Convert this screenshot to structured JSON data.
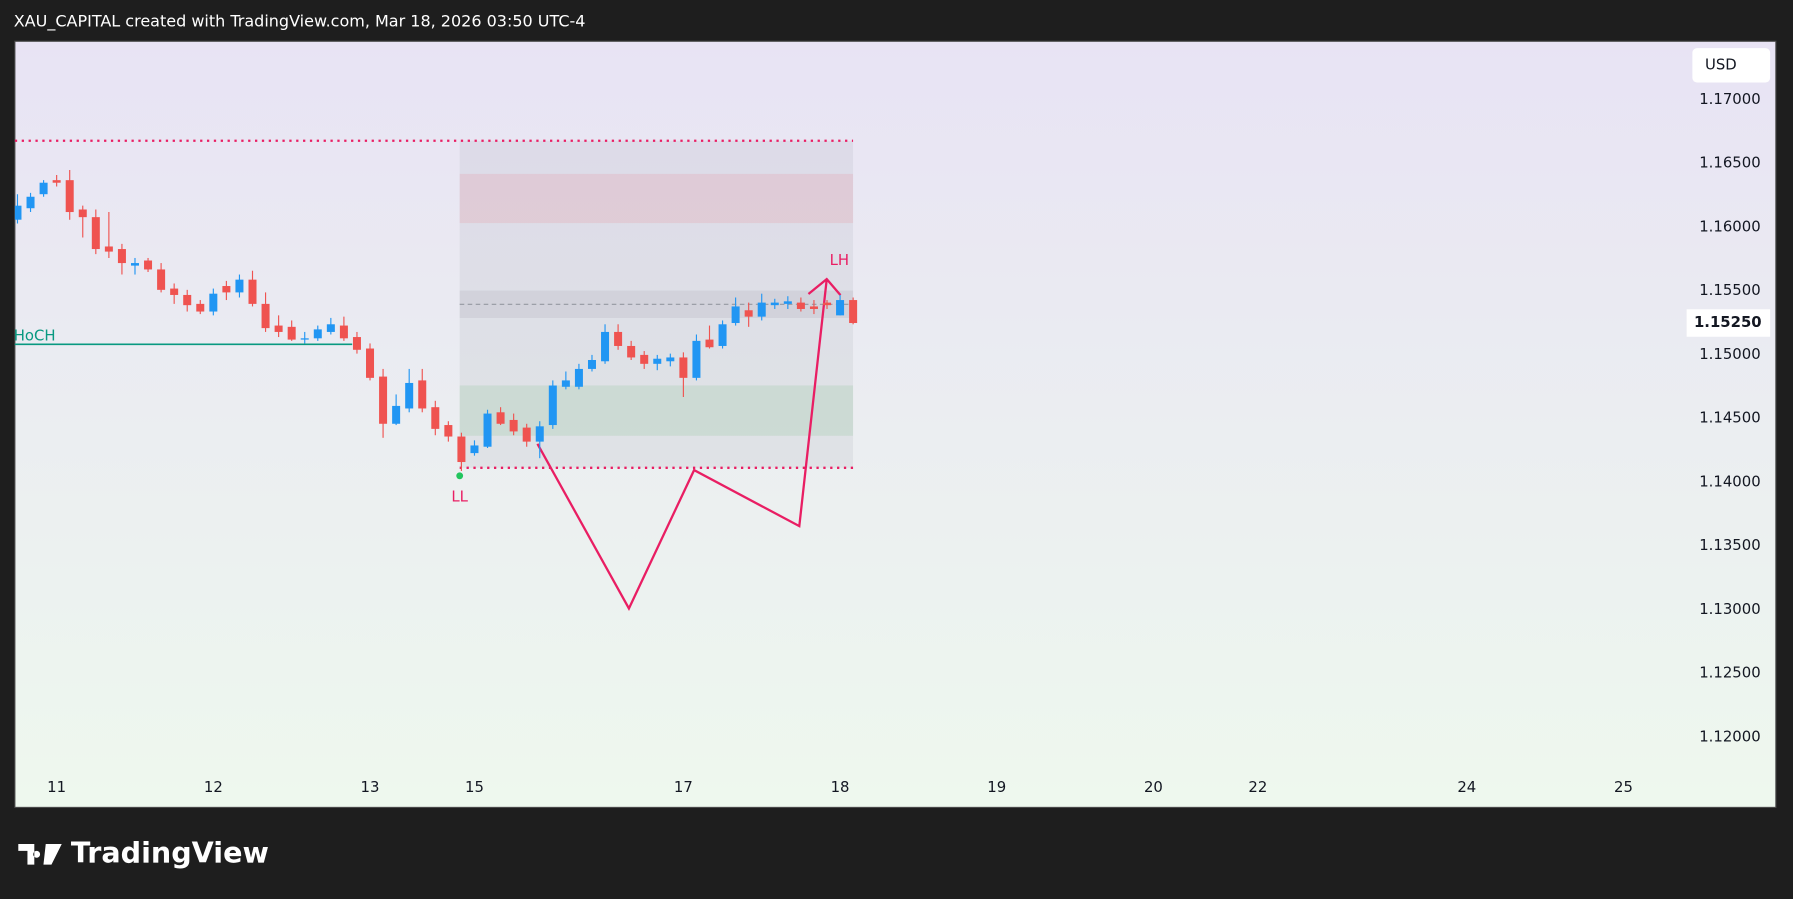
{
  "chart_data": {
    "type": "candlestick",
    "title": "XAU_CAPITAL created with TradingView.com, Mar 18, 2026 03:50 UTC-4",
    "currency": "USD",
    "up_color": "#2196f3",
    "down_color": "#ef5350",
    "grid": false,
    "open": [
      1.1606,
      1.1615,
      1.1626,
      1.1637,
      1.1637,
      1.1614,
      1.1608,
      1.1585,
      1.1583,
      1.157,
      1.1574,
      1.1567,
      1.1552,
      1.1547,
      1.154,
      1.1534,
      1.1554,
      1.1549,
      1.1559,
      1.154,
      1.1523,
      1.1522,
      1.1512,
      1.1513,
      1.1518,
      1.1523,
      1.1514,
      1.1505,
      1.1483,
      1.1446,
      1.1458,
      1.148,
      1.1459,
      1.1445,
      1.1436,
      1.1423,
      1.1428,
      1.1455,
      1.1449,
      1.1443,
      1.1432,
      1.1445,
      1.1475,
      1.1475,
      1.1489,
      1.1495,
      1.1518,
      1.1507,
      1.15,
      1.1493,
      1.1495,
      1.1498,
      1.1482,
      1.1512,
      1.1507,
      1.1525,
      1.1535,
      1.153,
      1.1539,
      1.154,
      1.1541,
      1.1538,
      1.1541,
      1.1531,
      1.1543
    ],
    "high": [
      1.1626,
      1.1627,
      1.1637,
      1.1641,
      1.1645,
      1.1617,
      1.1614,
      1.1612,
      1.1587,
      1.1576,
      1.1576,
      1.1572,
      1.1556,
      1.1551,
      1.1543,
      1.1552,
      1.1558,
      1.1563,
      1.1566,
      1.1549,
      1.1531,
      1.1527,
      1.1518,
      1.1523,
      1.1529,
      1.153,
      1.1518,
      1.1509,
      1.1489,
      1.1469,
      1.1489,
      1.1489,
      1.1464,
      1.1448,
      1.1439,
      1.1433,
      1.1457,
      1.1459,
      1.1454,
      1.1446,
      1.1448,
      1.148,
      1.1487,
      1.1493,
      1.15,
      1.1524,
      1.1524,
      1.1511,
      1.1503,
      1.15,
      1.1501,
      1.1502,
      1.1516,
      1.1523,
      1.1527,
      1.1545,
      1.1541,
      1.1548,
      1.1544,
      1.1546,
      1.1545,
      1.1543,
      1.1543,
      1.1547,
      1.1545
    ],
    "low": [
      1.1603,
      1.1612,
      1.1624,
      1.1632,
      1.1606,
      1.1592,
      1.1579,
      1.1576,
      1.1563,
      1.1563,
      1.1565,
      1.1549,
      1.154,
      1.1534,
      1.1532,
      1.1531,
      1.1543,
      1.1545,
      1.1538,
      1.1518,
      1.1514,
      1.1511,
      1.1509,
      1.1511,
      1.1516,
      1.1511,
      1.1501,
      1.148,
      1.1435,
      1.1445,
      1.1455,
      1.1455,
      1.1437,
      1.1432,
      1.1409,
      1.1421,
      1.1427,
      1.1445,
      1.1437,
      1.1428,
      1.1419,
      1.1442,
      1.1473,
      1.1473,
      1.1487,
      1.1493,
      1.1504,
      1.1496,
      1.1489,
      1.1488,
      1.1491,
      1.1467,
      1.148,
      1.1505,
      1.1505,
      1.1523,
      1.1522,
      1.1527,
      1.1536,
      1.1536,
      1.1534,
      1.1532,
      1.1536,
      1.1531,
      1.1524
    ],
    "close": [
      1.1617,
      1.1624,
      1.1635,
      1.1635,
      1.1612,
      1.1608,
      1.1583,
      1.1581,
      1.1572,
      1.1572,
      1.1567,
      1.1551,
      1.1547,
      1.1539,
      1.1534,
      1.1548,
      1.1549,
      1.1559,
      1.154,
      1.1521,
      1.1518,
      1.1512,
      1.1513,
      1.152,
      1.1524,
      1.1513,
      1.1504,
      1.1482,
      1.1446,
      1.146,
      1.1478,
      1.1458,
      1.1442,
      1.1436,
      1.1416,
      1.1429,
      1.1454,
      1.1446,
      1.144,
      1.1432,
      1.1444,
      1.1476,
      1.148,
      1.1489,
      1.1496,
      1.1518,
      1.1507,
      1.1498,
      1.1493,
      1.1497,
      1.1498,
      1.1482,
      1.1511,
      1.1506,
      1.1524,
      1.1538,
      1.153,
      1.1541,
      1.1541,
      1.1542,
      1.1536,
      1.1536,
      1.1539,
      1.1543,
      1.1525
    ],
    "last_price_label": "1.15250",
    "xlim": [
      -0.2,
      127.4
    ],
    "xticks": [
      {
        "value": 3,
        "label": "11"
      },
      {
        "value": 15,
        "label": "12"
      },
      {
        "value": 27,
        "label": "13"
      },
      {
        "value": 35,
        "label": "15"
      },
      {
        "value": 51,
        "label": "17"
      },
      {
        "value": 63,
        "label": "18"
      },
      {
        "value": 75,
        "label": "19"
      },
      {
        "value": 87,
        "label": "20"
      },
      {
        "value": 95,
        "label": "22"
      },
      {
        "value": 111,
        "label": "24"
      },
      {
        "value": 123,
        "label": "25"
      }
    ],
    "ylim": [
      1.1173,
      1.1745
    ],
    "yticks": [
      {
        "value": 1.12,
        "label": "1.12000"
      },
      {
        "value": 1.125,
        "label": "1.12500"
      },
      {
        "value": 1.13,
        "label": "1.13000"
      },
      {
        "value": 1.135,
        "label": "1.13500"
      },
      {
        "value": 1.14,
        "label": "1.14000"
      },
      {
        "value": 1.145,
        "label": "1.14500"
      },
      {
        "value": 1.15,
        "label": "1.15000"
      },
      {
        "value": 1.155,
        "label": "1.15500"
      },
      {
        "value": 1.16,
        "label": "1.16000"
      },
      {
        "value": 1.165,
        "label": "1.16500"
      },
      {
        "value": 1.17,
        "label": "1.17000"
      }
    ],
    "annotations": [
      "HoCH",
      "LL",
      "LH"
    ]
  },
  "branding": "TradingView"
}
